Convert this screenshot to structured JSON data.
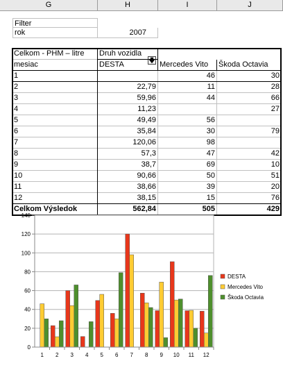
{
  "columns": [
    "G",
    "H",
    "I",
    "J"
  ],
  "filter": {
    "label": "Filter",
    "field": "rok",
    "value": "2007"
  },
  "pivot": {
    "header_title": "Celkom - PHM – litre",
    "column_field": "Druh vozidla",
    "row_field": "mesiac",
    "col_names": [
      "DESTA",
      "Mercedes Vito",
      "Škoda Octavia"
    ],
    "rows": [
      {
        "m": "1",
        "v": [
          "",
          "46",
          "30"
        ]
      },
      {
        "m": "2",
        "v": [
          "22,79",
          "11",
          "28"
        ]
      },
      {
        "m": "3",
        "v": [
          "59,96",
          "44",
          "66"
        ]
      },
      {
        "m": "4",
        "v": [
          "11,23",
          "",
          "27"
        ]
      },
      {
        "m": "5",
        "v": [
          "49,49",
          "56",
          ""
        ]
      },
      {
        "m": "6",
        "v": [
          "35,84",
          "30",
          "79"
        ]
      },
      {
        "m": "7",
        "v": [
          "120,06",
          "98",
          ""
        ]
      },
      {
        "m": "8",
        "v": [
          "57,3",
          "47",
          "42"
        ]
      },
      {
        "m": "9",
        "v": [
          "38,7",
          "69",
          "10"
        ]
      },
      {
        "m": "10",
        "v": [
          "90,66",
          "50",
          "51"
        ]
      },
      {
        "m": "11",
        "v": [
          "38,66",
          "39",
          "20"
        ]
      },
      {
        "m": "12",
        "v": [
          "38,15",
          "15",
          "76"
        ]
      }
    ],
    "total_label": "Celkom Výsledok",
    "totals": [
      "562,84",
      "505",
      "429"
    ]
  },
  "chart_data": {
    "type": "bar",
    "categories": [
      "1",
      "2",
      "3",
      "4",
      "5",
      "6",
      "7",
      "8",
      "9",
      "10",
      "11",
      "12"
    ],
    "series": [
      {
        "name": "DESTA",
        "color": "#e8371b",
        "values": [
          0,
          22.79,
          59.96,
          11.23,
          49.49,
          35.84,
          120.06,
          57.3,
          38.7,
          90.66,
          38.66,
          38.15
        ]
      },
      {
        "name": "Mercedes Vito",
        "color": "#ffcc33",
        "values": [
          46,
          11,
          44,
          0,
          56,
          30,
          98,
          47,
          69,
          50,
          39,
          15
        ]
      },
      {
        "name": "Škoda Octavia",
        "color": "#4e8f2d",
        "values": [
          30,
          28,
          66,
          27,
          0,
          79,
          0,
          42,
          10,
          51,
          20,
          76
        ]
      }
    ],
    "ylim": [
      0,
      140
    ],
    "yticks": [
      "0",
      "20",
      "40",
      "60",
      "80",
      "100",
      "120",
      "140"
    ],
    "grid": true,
    "legend": "right"
  }
}
